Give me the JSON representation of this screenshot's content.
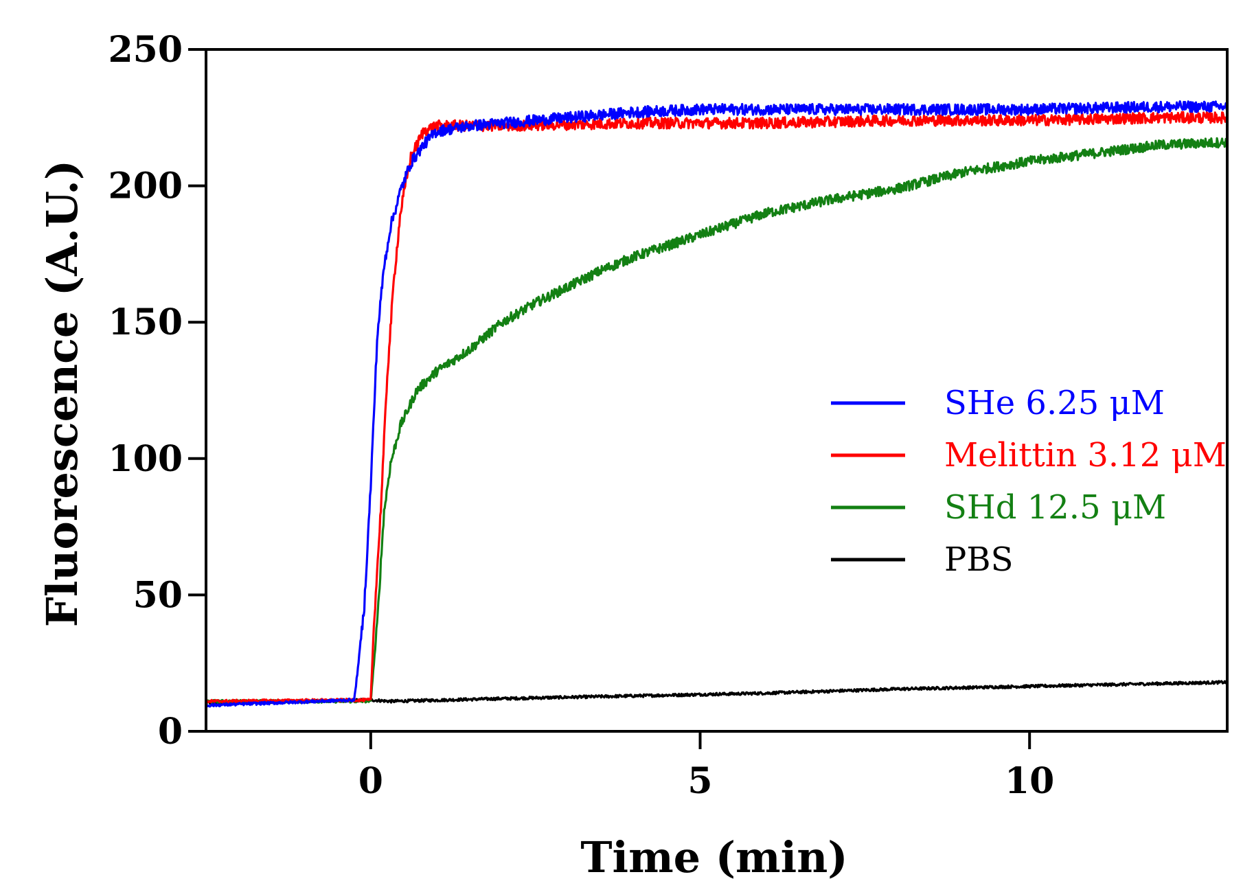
{
  "chart_data": {
    "type": "line",
    "title": "",
    "xlabel": "Time (min)",
    "ylabel": "Fluorescence (A.U.)",
    "xlim": [
      -2.5,
      13
    ],
    "ylim": [
      0,
      250
    ],
    "xticks": [
      0,
      5,
      10
    ],
    "yticks": [
      0,
      50,
      100,
      150,
      200,
      250
    ],
    "grid": false,
    "legend_position": "right-center",
    "series": [
      {
        "name": "PBS",
        "color": "#000000",
        "noise": 0.6,
        "points": [
          [
            -2.5,
            10.5
          ],
          [
            -1,
            11
          ],
          [
            0,
            11.5
          ],
          [
            0.3,
            11
          ],
          [
            2,
            12
          ],
          [
            4,
            13
          ],
          [
            6,
            14
          ],
          [
            8,
            15.5
          ],
          [
            10,
            16.5
          ],
          [
            12,
            17.5
          ],
          [
            13,
            18
          ]
        ]
      },
      {
        "name": "SHd 12.5 μM",
        "color": "#138013",
        "noise": 1.8,
        "points": [
          [
            -2.5,
            11
          ],
          [
            0,
            11
          ],
          [
            0.1,
            40
          ],
          [
            0.2,
            80
          ],
          [
            0.3,
            98
          ],
          [
            0.45,
            112
          ],
          [
            0.7,
            125
          ],
          [
            1,
            132
          ],
          [
            1.5,
            140
          ],
          [
            2,
            150
          ],
          [
            2.5,
            157
          ],
          [
            3,
            163
          ],
          [
            3.5,
            169
          ],
          [
            4,
            174
          ],
          [
            4.5,
            178
          ],
          [
            5,
            182
          ],
          [
            6,
            190
          ],
          [
            7,
            195
          ],
          [
            8,
            199
          ],
          [
            9,
            205
          ],
          [
            10,
            209
          ],
          [
            11,
            212
          ],
          [
            12,
            215
          ],
          [
            13,
            216
          ]
        ]
      },
      {
        "name": "Melittin 3.12 μM",
        "color": "#ff0000",
        "noise": 2.0,
        "points": [
          [
            -2.5,
            11
          ],
          [
            0,
            11.5
          ],
          [
            0.05,
            40
          ],
          [
            0.15,
            80
          ],
          [
            0.25,
            130
          ],
          [
            0.35,
            165
          ],
          [
            0.45,
            190
          ],
          [
            0.6,
            210
          ],
          [
            0.8,
            220
          ],
          [
            1,
            222
          ],
          [
            2,
            222
          ],
          [
            4,
            223
          ],
          [
            6,
            223
          ],
          [
            8,
            224
          ],
          [
            10,
            224
          ],
          [
            12,
            225
          ],
          [
            13,
            225
          ]
        ]
      },
      {
        "name": "SHe 6.25 μM",
        "color": "#0000ff",
        "noise": 2.0,
        "points": [
          [
            -2.5,
            9.5
          ],
          [
            -0.25,
            11.5
          ],
          [
            -0.2,
            22
          ],
          [
            -0.1,
            45
          ],
          [
            0,
            90
          ],
          [
            0.1,
            145
          ],
          [
            0.2,
            170
          ],
          [
            0.3,
            185
          ],
          [
            0.45,
            198
          ],
          [
            0.6,
            208
          ],
          [
            0.8,
            215
          ],
          [
            1,
            220
          ],
          [
            1.5,
            222
          ],
          [
            2,
            223
          ],
          [
            3,
            225
          ],
          [
            4,
            227
          ],
          [
            5,
            228
          ],
          [
            6,
            228
          ],
          [
            8,
            228
          ],
          [
            10,
            228
          ],
          [
            12,
            229
          ],
          [
            13,
            229
          ]
        ]
      }
    ],
    "legend_order": [
      "SHe 6.25 μM",
      "Melittin 3.12 μM",
      "SHd 12.5 μM",
      "PBS"
    ]
  }
}
